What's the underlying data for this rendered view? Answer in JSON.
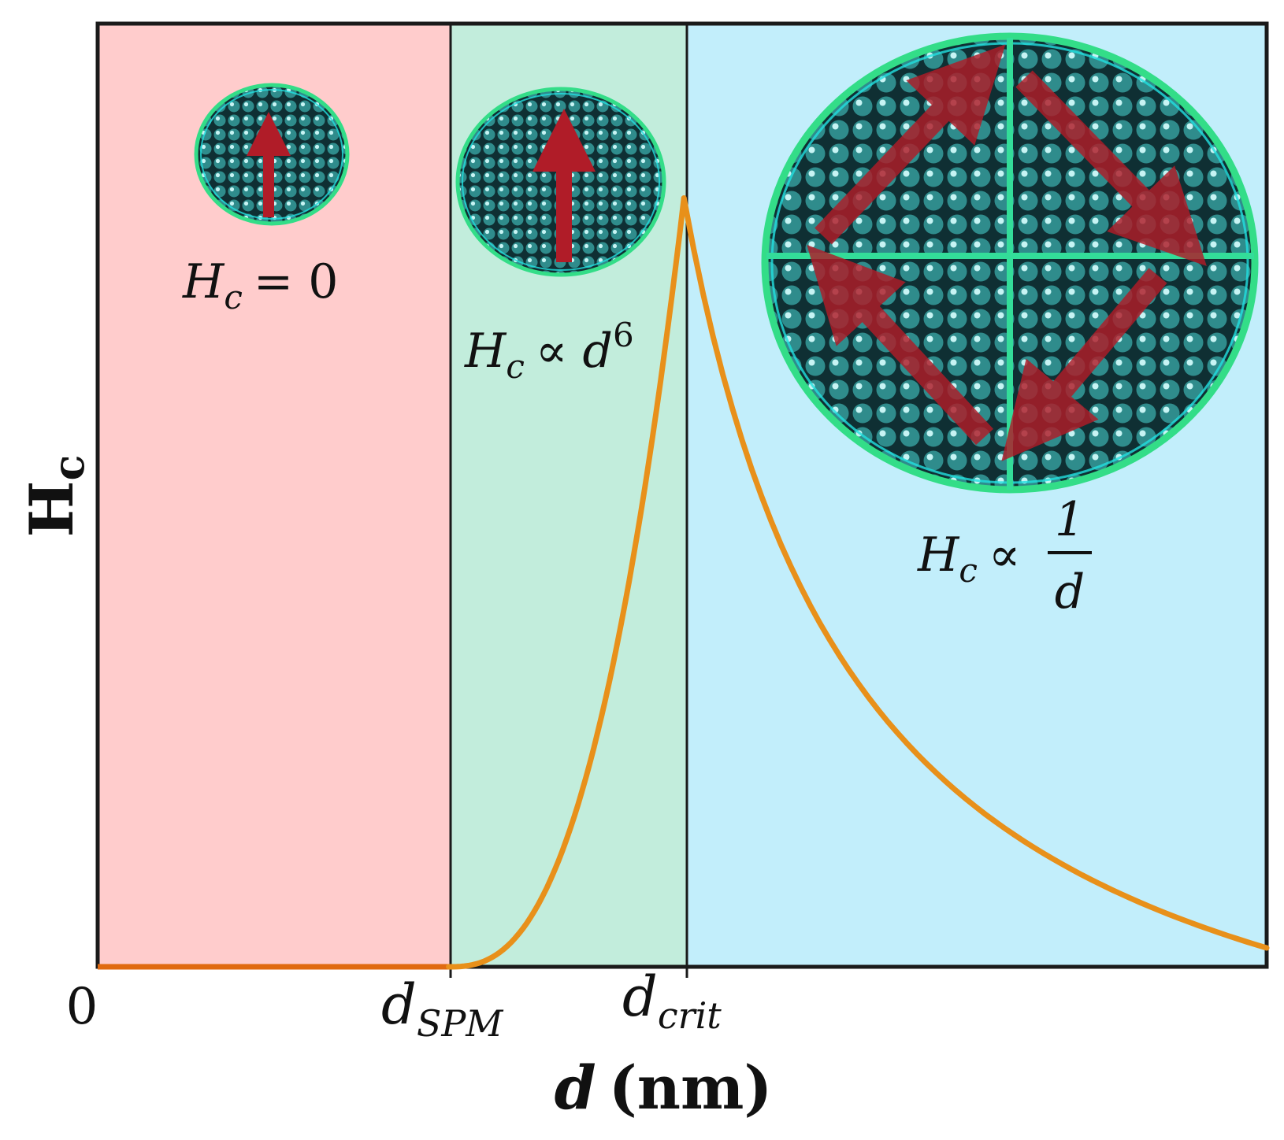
{
  "chart_data": {
    "type": "line",
    "xlabel": {
      "var": "d",
      "unit": "(nm)"
    },
    "ylabel": {
      "main": "H",
      "sub": "c"
    },
    "x_ticks": [
      {
        "main": "0",
        "sub": ""
      },
      {
        "main": "d",
        "sub": "SPM"
      },
      {
        "main": "d",
        "sub": "crit"
      }
    ],
    "regions": [
      {
        "x_range": [
          0,
          1.0
        ],
        "color": "#ffcccc"
      },
      {
        "x_range": [
          1.0,
          1.67
        ],
        "color": "#c2eddc"
      },
      {
        "x_range": [
          1.67,
          3.33
        ],
        "color": "#c2eefb"
      }
    ],
    "annotations": [
      {
        "lhs": "H",
        "sub": "c",
        "op": "= 0"
      },
      {
        "lhs": "H",
        "sub": "c",
        "op": "∝ d",
        "sup": "6"
      },
      {
        "lhs": "H",
        "sub": "c",
        "op": "∝",
        "num": "1",
        "den": "d"
      }
    ],
    "series_color": "#e8901a",
    "xlim": [
      0,
      3.33
    ],
    "ylim": [
      0,
      1.0
    ],
    "x_dspm": 1.0,
    "x_dcrit": 1.67,
    "y_peak": 0.815,
    "y_end": 0.02,
    "particles": [
      {
        "kind": "single-domain",
        "arrows": [
          "up"
        ]
      },
      {
        "kind": "single-domain",
        "arrows": [
          "up"
        ]
      },
      {
        "kind": "multi-domain",
        "arrows": [
          "up-right",
          "down-right",
          "down-left",
          "up-left"
        ]
      }
    ],
    "particle_colors": {
      "rim": "#33dd88",
      "atom": "#2a7a7a",
      "arrow": "#b01c28"
    }
  }
}
